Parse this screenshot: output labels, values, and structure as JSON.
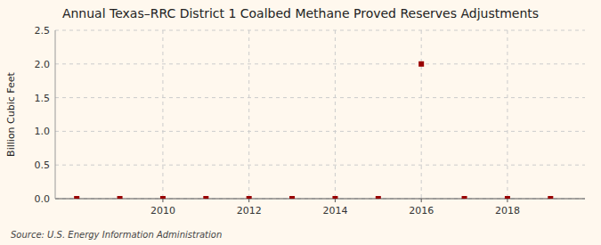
{
  "chart_data": {
    "type": "scatter",
    "title": "Annual Texas–RRC District 1 Coalbed Methane Proved Reserves Adjustments",
    "ylabel": "Billion Cubic Feet",
    "annotations": [
      "Source: U.S. Energy Information Administration"
    ],
    "x": [
      2008,
      2009,
      2010,
      2011,
      2012,
      2013,
      2014,
      2015,
      2016,
      2017,
      2018,
      2019
    ],
    "values": [
      0.0,
      0.0,
      0.0,
      0.0,
      0.0,
      0.0,
      0.0,
      0.0,
      2.0,
      0.0,
      0.0,
      0.0
    ],
    "xlim": [
      2007.5,
      2019.8
    ],
    "ylim": [
      0.0,
      2.5
    ],
    "xticks": [
      2010,
      2012,
      2014,
      2016,
      2018
    ],
    "yticks": [
      {
        "value": 0.0,
        "label": "0.0"
      },
      0.5,
      {
        "value": 1.0,
        "label": "1.0"
      },
      1.5,
      {
        "value": 2.0,
        "label": "2.0"
      },
      2.5
    ],
    "color": "#990000",
    "marker": "square",
    "grid": true
  }
}
